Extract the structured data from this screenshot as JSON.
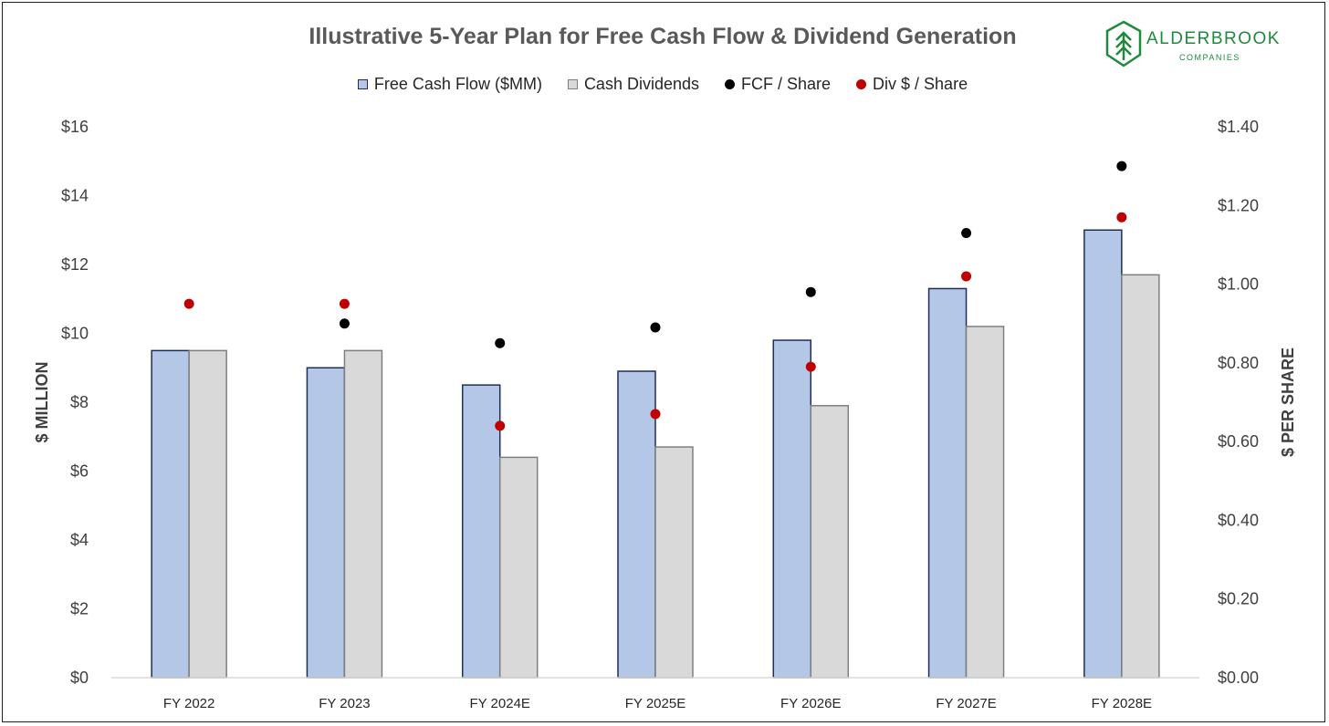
{
  "chart_data": {
    "type": "bar",
    "title": "Illustrative 5-Year Plan for Free Cash Flow & Dividend Generation",
    "categories": [
      "FY 2022",
      "FY 2023",
      "FY 2024E",
      "FY 2025E",
      "FY 2026E",
      "FY 2027E",
      "FY 2028E"
    ],
    "series": [
      {
        "name": "Free Cash Flow ($MM)",
        "kind": "bar",
        "axis": "left",
        "color": "#b4c7e7",
        "stroke": "#1f2d5a",
        "values": [
          9.5,
          9.0,
          8.5,
          8.9,
          9.8,
          11.3,
          13.0
        ]
      },
      {
        "name": "Cash Dividends",
        "kind": "bar",
        "axis": "left",
        "color": "#d9d9d9",
        "stroke": "#7f7f7f",
        "values": [
          9.5,
          9.5,
          6.4,
          6.7,
          7.9,
          10.2,
          11.7
        ]
      },
      {
        "name": "FCF / Share",
        "kind": "scatter",
        "axis": "right",
        "color": "#000000",
        "values": [
          null,
          0.9,
          0.85,
          0.89,
          0.98,
          1.13,
          1.3
        ]
      },
      {
        "name": "Div $ / Share",
        "kind": "scatter",
        "axis": "right",
        "color": "#c00000",
        "values": [
          0.95,
          0.95,
          0.64,
          0.67,
          0.79,
          1.02,
          1.17
        ]
      }
    ],
    "ylabel": "$ MILLION",
    "ylim": [
      0,
      16
    ],
    "yticks": [
      "$0",
      "$2",
      "$4",
      "$6",
      "$8",
      "$10",
      "$12",
      "$14",
      "$16"
    ],
    "y2label": "$ PER SHARE",
    "y2lim": [
      0,
      1.4
    ],
    "y2ticks": [
      "$0.00",
      "$0.20",
      "$0.40",
      "$0.60",
      "$0.80",
      "$1.00",
      "$1.20",
      "$1.40"
    ],
    "legend_position": "top-center",
    "grid": false
  },
  "logo": {
    "name": "ALDERBROOK",
    "subtitle": "COMPANIES",
    "color": "#1e8a3c"
  }
}
